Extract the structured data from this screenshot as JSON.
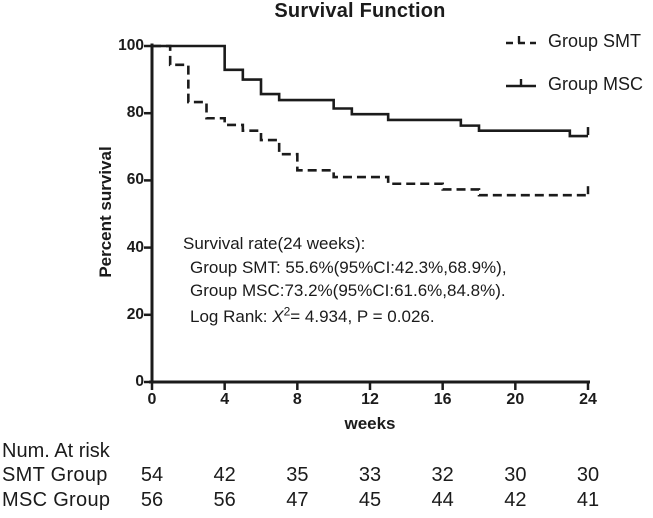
{
  "title": "Survival Function",
  "colors": {
    "line": "#1b1b1b",
    "text": "#1b1b1b",
    "background": "#ffffff"
  },
  "legend": [
    {
      "label": "Group SMT",
      "style": "dashed"
    },
    {
      "label": "Group MSC",
      "style": "solid"
    }
  ],
  "annotation": {
    "line1": "Survival rate(24 weeks):",
    "line2": "Group SMT: 55.6%(95%CI:42.3%,68.9%),",
    "line3": "Group MSC:73.2%(95%CI:61.6%,84.8%).",
    "log_rank_prefix": "Log Rank: ",
    "chi_symbol": "X",
    "chi_exponent": "2",
    "log_rank_suffix": "= 4.934, P = 0.026."
  },
  "statistics": {
    "chi_square": 4.934,
    "p_value": 0.026
  },
  "chart_data": {
    "type": "line",
    "subtype": "kaplan-meier-step",
    "title": "Survival Function",
    "xlabel": "weeks",
    "ylabel": "Percent survival",
    "xlim": [
      0,
      24
    ],
    "ylim": [
      0,
      100
    ],
    "xticks": [
      0,
      4,
      8,
      12,
      16,
      20,
      24
    ],
    "yticks": [
      0,
      20,
      40,
      60,
      80,
      100
    ],
    "grid": false,
    "legend_position": "top-right",
    "series": [
      {
        "name": "Group SMT",
        "style": "dashed",
        "steps": [
          [
            0,
            100
          ],
          [
            1,
            94.4
          ],
          [
            2,
            83.3
          ],
          [
            3,
            78.5
          ],
          [
            4,
            76.5
          ],
          [
            5,
            74.8
          ],
          [
            6,
            72.0
          ],
          [
            7,
            67.8
          ],
          [
            8,
            63.0
          ],
          [
            10,
            61.0
          ],
          [
            13,
            59.0
          ],
          [
            16,
            57.3
          ],
          [
            18,
            55.6
          ]
        ],
        "end_x": 24,
        "end_value": 55.6,
        "end_tick": true
      },
      {
        "name": "Group MSC",
        "style": "solid",
        "steps": [
          [
            0,
            100
          ],
          [
            4,
            92.9
          ],
          [
            5,
            90.0
          ],
          [
            6,
            85.7
          ],
          [
            7,
            83.9
          ],
          [
            10,
            81.4
          ],
          [
            11,
            79.7
          ],
          [
            13,
            78.0
          ],
          [
            17,
            76.3
          ],
          [
            18,
            74.8
          ],
          [
            23,
            73.2
          ]
        ],
        "end_x": 24,
        "end_value": 73.2,
        "end_tick": true
      }
    ]
  },
  "at_risk_table": {
    "header": "Num. At risk",
    "weeks": [
      0,
      4,
      8,
      12,
      16,
      20,
      24
    ],
    "rows": [
      {
        "label": "SMT Group",
        "values": [
          54,
          42,
          35,
          33,
          32,
          30,
          30
        ]
      },
      {
        "label": "MSC Group",
        "values": [
          56,
          56,
          47,
          45,
          44,
          42,
          41
        ]
      }
    ]
  }
}
